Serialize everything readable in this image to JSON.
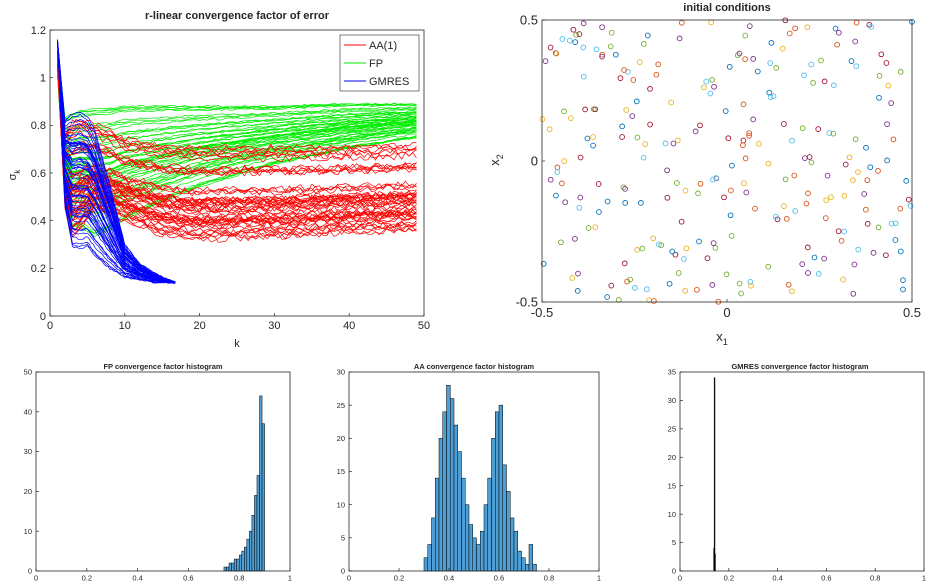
{
  "chart_data": [
    {
      "id": "convergence",
      "type": "line",
      "title": "r-linear convergence factor of error",
      "xlabel": "k",
      "ylabel": "σ",
      "ylabel_sub": "k",
      "xlim": [
        0,
        50
      ],
      "ylim": [
        0,
        1.2
      ],
      "xticks": [
        "0",
        "10",
        "20",
        "30",
        "40",
        "50"
      ],
      "yticks": [
        "0",
        "0.2",
        "0.4",
        "0.6",
        "0.8",
        "1",
        "1.2"
      ],
      "grid": false,
      "legend_position": "top-right",
      "series": [
        {
          "name": "AA(1)",
          "color": "#ff0000",
          "band": {
            "x": [
              1,
              2,
              3,
              4,
              6,
              8,
              10,
              15,
              20,
              30,
              40,
              49
            ],
            "low": [
              1.05,
              0.45,
              0.34,
              0.36,
              0.45,
              0.42,
              0.4,
              0.34,
              0.32,
              0.33,
              0.35,
              0.36
            ],
            "high": [
              1.12,
              0.78,
              0.84,
              0.86,
              0.82,
              0.8,
              0.76,
              0.74,
              0.73,
              0.73,
              0.73,
              0.74
            ]
          }
        },
        {
          "name": "FP",
          "color": "#00ee00",
          "band": {
            "x": [
              1,
              2,
              3,
              4,
              6,
              8,
              10,
              15,
              20,
              30,
              40,
              49
            ],
            "low": [
              1.0,
              0.5,
              0.33,
              0.34,
              0.3,
              0.33,
              0.37,
              0.45,
              0.52,
              0.62,
              0.69,
              0.74
            ],
            "high": [
              1.15,
              0.83,
              0.85,
              0.86,
              0.87,
              0.87,
              0.88,
              0.88,
              0.88,
              0.88,
              0.89,
              0.89
            ]
          }
        },
        {
          "name": "GMRES",
          "color": "#0000ff",
          "band": {
            "x": [
              1,
              2,
              3,
              4,
              5,
              6,
              8,
              10,
              12,
              14,
              16,
              16.8
            ],
            "low": [
              1.15,
              0.45,
              0.28,
              0.27,
              0.28,
              0.24,
              0.19,
              0.16,
              0.15,
              0.14,
              0.14,
              0.14
            ],
            "high": [
              1.16,
              0.82,
              0.85,
              0.86,
              0.84,
              0.78,
              0.55,
              0.3,
              0.22,
              0.18,
              0.15,
              0.14
            ]
          }
        }
      ]
    },
    {
      "id": "initial",
      "type": "scatter",
      "title": "initial conditions",
      "xlabel": "x",
      "xlabel_sub": "1",
      "ylabel": "x",
      "ylabel_sub": "2",
      "xlim": [
        -0.5,
        0.5
      ],
      "ylim": [
        -0.5,
        0.5
      ],
      "xticks": [
        "-0.5",
        "0",
        "0.5"
      ],
      "yticks": [
        "-0.5",
        "0",
        "0.5"
      ],
      "marker": "circle-open",
      "point_count": 260,
      "colors": [
        "#0072bd",
        "#d95319",
        "#edb120",
        "#7e2f8e",
        "#77ac30",
        "#4dbeee",
        "#a2142f"
      ]
    },
    {
      "id": "fp_hist",
      "type": "bar",
      "title": "FP convergence factor histogram",
      "xlim": [
        0,
        1
      ],
      "ylim": [
        0,
        50
      ],
      "xticks": [
        "0",
        "0.2",
        "0.4",
        "0.6",
        "0.8",
        "1"
      ],
      "yticks": [
        "0",
        "10",
        "20",
        "30",
        "40",
        "50"
      ],
      "bin_width": 0.01,
      "bins_start": [
        0.74,
        0.75,
        0.76,
        0.77,
        0.78,
        0.79,
        0.8,
        0.81,
        0.82,
        0.83,
        0.84,
        0.85,
        0.86,
        0.87,
        0.88,
        0.89
      ],
      "counts": [
        1,
        1,
        2,
        2,
        3,
        3,
        4,
        5,
        6,
        8,
        10,
        14,
        19,
        24,
        44,
        37
      ],
      "color": "#4d9fd6"
    },
    {
      "id": "aa_hist",
      "type": "bar",
      "title": "AA convergence factor histogram",
      "xlim": [
        0,
        1
      ],
      "ylim": [
        0,
        30
      ],
      "xticks": [
        "0",
        "0.2",
        "0.4",
        "0.6",
        "0.8",
        "1"
      ],
      "yticks": [
        "0",
        "5",
        "10",
        "15",
        "20",
        "25",
        "30"
      ],
      "bin_width": 0.015,
      "bins_start": [
        0.3,
        0.315,
        0.33,
        0.345,
        0.36,
        0.375,
        0.39,
        0.405,
        0.42,
        0.435,
        0.45,
        0.465,
        0.48,
        0.495,
        0.51,
        0.525,
        0.54,
        0.555,
        0.57,
        0.585,
        0.6,
        0.615,
        0.63,
        0.645,
        0.66,
        0.675,
        0.69,
        0.705,
        0.72,
        0.735
      ],
      "counts": [
        2,
        4,
        8,
        14,
        20,
        24,
        28,
        26,
        22,
        18,
        14,
        10,
        7,
        5,
        4,
        6,
        10,
        14,
        20,
        24,
        25,
        16,
        12,
        8,
        6,
        3,
        2,
        1,
        4,
        1
      ],
      "color": "#4d9fd6"
    },
    {
      "id": "gmres_hist",
      "type": "bar",
      "title": "GMRES convergence factor histogram",
      "xlim": [
        0,
        1
      ],
      "ylim": [
        0,
        35
      ],
      "xticks": [
        "0",
        "0.2",
        "0.4",
        "0.6",
        "0.8",
        "1"
      ],
      "yticks": [
        "0",
        "5",
        "10",
        "15",
        "20",
        "25",
        "30",
        "35"
      ],
      "bin_width": 0.002,
      "bins_start": [
        0.138,
        0.14,
        0.142
      ],
      "counts": [
        4,
        34,
        3
      ],
      "color": "#000000"
    }
  ],
  "colors": {
    "axis": "#262626",
    "background": "#ffffff"
  }
}
